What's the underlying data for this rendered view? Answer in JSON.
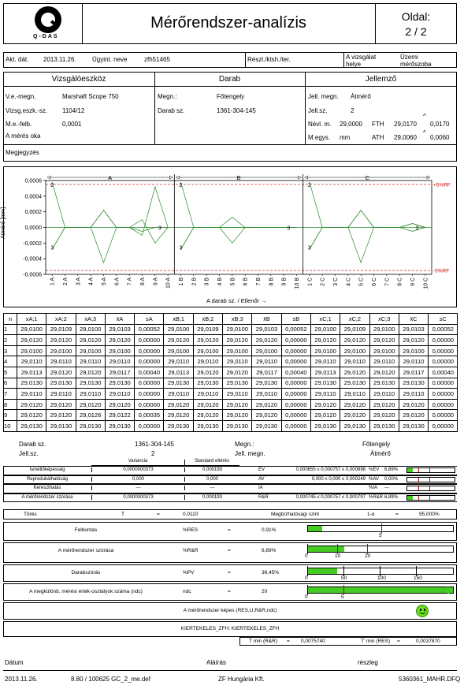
{
  "header": {
    "logo_text": "Q-DAS",
    "title": "Mérőrendszer-analízis",
    "page_label": "Oldal:",
    "page_value": "2 / 2"
  },
  "info": {
    "akt_lbl": "Akt. dát.",
    "akt_val": "2013.11.26.",
    "ugy_lbl": "Ügyint. neve",
    "ugy_val": "zfh51465",
    "reszl_lbl": "Részl./ktsh./ter.",
    "vizsg_lbl": "A vizsgálat helye",
    "vizsg_val": "Üzemi mérőszoba"
  },
  "sections": {
    "eszkoz": "Vizsgálóeszköz",
    "darab": "Darab",
    "jellemzo": "Jellemző"
  },
  "eszkoz": {
    "megn_lbl": "V.e.-megn.",
    "megn_val": "Marshaft Scope 750",
    "sz_lbl": "Vizsg.eszk.-sz.",
    "sz_val": "1104/12",
    "felb_lbl": "M.e.-felb.",
    "felb_val": "0,0001",
    "oka_lbl": "A mérés oka"
  },
  "darab": {
    "megn_lbl": "Megn.:",
    "megn_val": "Főtengely",
    "sz_lbl": "Darab sz.",
    "sz_val": "1361-304-145"
  },
  "jellemzo": {
    "megn_lbl": "Jell. megn.",
    "megn_val": "Átmérő",
    "sz_lbl": "Jell.sz.",
    "sz_val": "2",
    "nevl_lbl": "Névl. m.",
    "nevl_val": "29,0000",
    "fth_lbl": "FTH",
    "fth_val": "29,0170",
    "fth_tol": "0,0170",
    "megys_lbl": "M.egys.",
    "megys_val": "mm",
    "ath_lbl": "ATH",
    "ath_val": "29,0060",
    "ath_tol": "0,0060"
  },
  "megjegyzes": "Megjegyzés",
  "chart_data": {
    "type": "line",
    "ylabel": "Átmérő [mm] →",
    "xlabel": "A darab sz. / Ellenőr →",
    "y_ticks": [
      "0,0006",
      "0,0004",
      "0,0002",
      "0,0000",
      "-0,0002",
      "-0,0004",
      "-0,0006"
    ],
    "ylim": [
      -0.0006,
      0.0006
    ],
    "ref_upper_label": "+5%RF",
    "ref_lower_label": "-5%RF",
    "ref_upper": 0.00055,
    "ref_lower": -0.00055,
    "groups": [
      "A",
      "B",
      "C"
    ],
    "x_labels": [
      "1 A",
      "2 A",
      "3 A",
      "4 A",
      "5 A",
      "6 A",
      "7 A",
      "8 A",
      "9 A",
      "10 A",
      "1 B",
      "2 B",
      "3 B",
      "4 B",
      "5 B",
      "6 B",
      "7 B",
      "8 B",
      "9 B",
      "10 B",
      "1 C",
      "2 C",
      "3 C",
      "4 C",
      "5 C",
      "6 C",
      "7 C",
      "8 C",
      "9 C",
      "10 C"
    ],
    "series": [
      {
        "values": [
          -0.00028,
          0.0,
          0.0,
          0.0,
          0.00022,
          0.0,
          0.0,
          0.0001,
          -0.0002,
          0.0,
          -0.00028,
          0.0,
          0.0,
          0.0,
          0.00013,
          0.0,
          0.0,
          0.0,
          0.0,
          0.0,
          -0.00028,
          0.0,
          0.0,
          0.0,
          0.00022,
          0.0,
          0.0,
          0.0,
          -5e-05,
          0.0
        ]
      },
      {
        "values": [
          0.00058,
          0.0,
          0.0,
          0.0,
          -0.00045,
          0.0,
          0.0,
          -0.0001,
          0.00052,
          0.0,
          0.00058,
          0.0,
          0.0,
          0.0,
          -0.0002,
          0.0,
          0.0,
          0.0,
          0.0,
          0.0,
          0.00058,
          0.0,
          0.0,
          0.0,
          -0.00045,
          0.0,
          0.0,
          0.0,
          5e-05,
          0.0
        ]
      },
      {
        "values": [
          -0.00028,
          0.0,
          0.0,
          0.0,
          0.00022,
          0.0,
          0.0,
          -5e-05,
          0.0,
          0.0,
          -0.00028,
          0.0,
          0.0,
          0.0,
          0.0,
          0.0,
          0.0,
          0.0,
          0.0,
          0.0,
          -0.00028,
          0.0,
          0.0,
          0.0,
          0.00022,
          0.0,
          0.0,
          0.0,
          5e-05,
          0.0
        ]
      }
    ],
    "markers": [
      "2",
      "3",
      "3",
      "2",
      "3",
      "3",
      "2",
      "3",
      "3"
    ]
  },
  "table": {
    "headers": [
      "n",
      "xA;1",
      "xA;2",
      "xA;3",
      "x̄A",
      "sA",
      "xB;1",
      "xB;2",
      "xB;3",
      "x̄B",
      "sB",
      "xC;1",
      "xC;2",
      "xC;3",
      "x̄C",
      "sC"
    ],
    "rows": [
      [
        "1",
        "29,0100",
        "29,0109",
        "29,0100",
        "29,0103",
        "0,00052",
        "29,0100",
        "29,0109",
        "29,0100",
        "29,0103",
        "0,00052",
        "29,0100",
        "29,0109",
        "29,0100",
        "29,0103",
        "0,00052"
      ],
      [
        "2",
        "29,0120",
        "29,0120",
        "29,0120",
        "29,0120",
        "0,00000",
        "29,0120",
        "29,0120",
        "29,0120",
        "29,0120",
        "0,00000",
        "29,0120",
        "29,0120",
        "29,0120",
        "29,0120",
        "0,00000"
      ],
      [
        "3",
        "29,0100",
        "29,0100",
        "29,0100",
        "29,0100",
        "0,00000",
        "29,0100",
        "29,0100",
        "29,0100",
        "29,0100",
        "0,00000",
        "29,0100",
        "29,0100",
        "29,0100",
        "29,0100",
        "0,00000"
      ],
      [
        "4",
        "29,0110",
        "29,0110",
        "29,0110",
        "29,0110",
        "0,00000",
        "29,0110",
        "29,0110",
        "29,0110",
        "29,0110",
        "0,00000",
        "29,0110",
        "29,0110",
        "29,0110",
        "29,0110",
        "0,00000"
      ],
      [
        "5",
        "29,0113",
        "29,0120",
        "29,0120",
        "29,0117",
        "0,00040",
        "29,0113",
        "29,0120",
        "29,0120",
        "29,0117",
        "0,00040",
        "29,0113",
        "29,0120",
        "29,0120",
        "29,0117",
        "0,00040"
      ],
      [
        "6",
        "29,0130",
        "29,0130",
        "29,0130",
        "29,0130",
        "0,00000",
        "29,0130",
        "29,0130",
        "29,0130",
        "29,0130",
        "0,00000",
        "29,0130",
        "29,0130",
        "29,0130",
        "29,0130",
        "0,00000"
      ],
      [
        "7",
        "29,0110",
        "29,0110",
        "29,0110",
        "29,0110",
        "0,00000",
        "29,0110",
        "29,0110",
        "29,0110",
        "29,0110",
        "0,00000",
        "29,0110",
        "29,0110",
        "29,0110",
        "29,0110",
        "0,00000"
      ],
      [
        "8",
        "29,0120",
        "29,0120",
        "29,0120",
        "29,0120",
        "0,00000",
        "29,0120",
        "29,0120",
        "29,0120",
        "29,0120",
        "0,00000",
        "29,0120",
        "29,0120",
        "29,0120",
        "29,0120",
        "0,00000"
      ],
      [
        "9",
        "29,0120",
        "29,0120",
        "29,0126",
        "29,0122",
        "0,00035",
        "29,0120",
        "29,0120",
        "29,0120",
        "29,0120",
        "0,00000",
        "29,0120",
        "29,0120",
        "29,0120",
        "29,0120",
        "0,00000"
      ],
      [
        "10",
        "29,0130",
        "29,0130",
        "29,0130",
        "29,0130",
        "0,00000",
        "29,0130",
        "29,0130",
        "29,0130",
        "29,0130",
        "0,00000",
        "29,0130",
        "29,0130",
        "29,0130",
        "29,0130",
        "0,00000"
      ]
    ]
  },
  "results": {
    "darabsz_lbl": "Darab sz.",
    "darabsz_val": "1361-304-145",
    "jellsz_lbl": "Jell.sz.",
    "jellsz_val": "2",
    "megn_lbl": "Megn.:",
    "megn_val": "Főtengely",
    "jellmegn_lbl": "Jell. megn.",
    "jellmegn_val": "Átmérő",
    "col_var": "Variancia",
    "col_std": "Standard eltérés",
    "rows": [
      {
        "name": "Ismétlőképesség",
        "var": "0,0000000373",
        "std": "0,000193",
        "code": "EV",
        "range": "0,000655 ≤ 0,000757 ≤ 0,000898",
        "pct_lbl": "%EV",
        "pct": "6,89%",
        "fill": 0.12
      },
      {
        "name": "Reprodukálhatóság",
        "var": "0,000",
        "std": "0,000",
        "code": "AV",
        "range": "0,000 ≤ 0,000 ≤ 0,000249",
        "pct_lbl": "%AV",
        "pct": "0,00%",
        "fill": 0.0
      },
      {
        "name": "Kereszthatás",
        "var": "---",
        "std": "---",
        "code": "IA",
        "range": "",
        "pct_lbl": "%IA",
        "pct": "---",
        "fill": 0.0
      },
      {
        "name": "A mérőrendszer szórása",
        "var": "0,0000000373",
        "std": "0,000193",
        "code": "R&R",
        "range": "0,000745 ≤ 0,000757 ≤ 0,000797",
        "pct_lbl": "%R&R",
        "pct": "6,89%",
        "fill": 0.12
      }
    ],
    "tures_lbl": "Tűrés",
    "tures_sym": "T",
    "tures_eq": "=",
    "tures_val": "0,0110",
    "megb_lbl": "Megbízhatósági szint",
    "megb_sym": "1-α",
    "megb_eq": "=",
    "megb_val": "95,000%",
    "metrics": [
      {
        "name": "Felbontás",
        "code": "%RES",
        "eq": "=",
        "val": "0,91%",
        "ticks": [
          "5"
        ],
        "fill": 0.1
      },
      {
        "name": "A mérőrendszer szórása",
        "code": "%R&R",
        "eq": "=",
        "val": "6,89%",
        "ticks": [
          "0",
          "10",
          "20"
        ],
        "fill": 0.25
      },
      {
        "name": "Darabszórás",
        "code": "%PV",
        "eq": "=",
        "val": "36,45%",
        "ticks": [
          "0",
          "50",
          "100",
          "150"
        ],
        "fill": 0.2
      },
      {
        "name": "A megkülönb. mérési érték-osztályok száma (ndc)",
        "code": "ndc",
        "eq": "=",
        "val": "20",
        "ticks": [
          "0",
          "5"
        ],
        "fill": 1.0
      }
    ],
    "kepes": "A mérőrendszer képes (RES,U,R&R,ndc)",
    "kiert": "KIERTEKELES_ZFH: KIERTEKELES_ZFH",
    "tmin_rr_lbl": "T min (R&R)",
    "tmin_rr_eq": "=",
    "tmin_rr_val": "0,0075740",
    "tmin_res_lbl": "T' min (RES)",
    "tmin_res_eq": "=",
    "tmin_res_val": "0,0037870"
  },
  "footer": {
    "datum": "Dátum",
    "alairas": "Aláírás",
    "reszleg": "részleg",
    "date": "2013.11.26.",
    "ver": "8.80 / 100625 GC_2_me.def",
    "company": "ZF Hungária Kft.",
    "file": "5360361_MAHR.DFQ"
  }
}
